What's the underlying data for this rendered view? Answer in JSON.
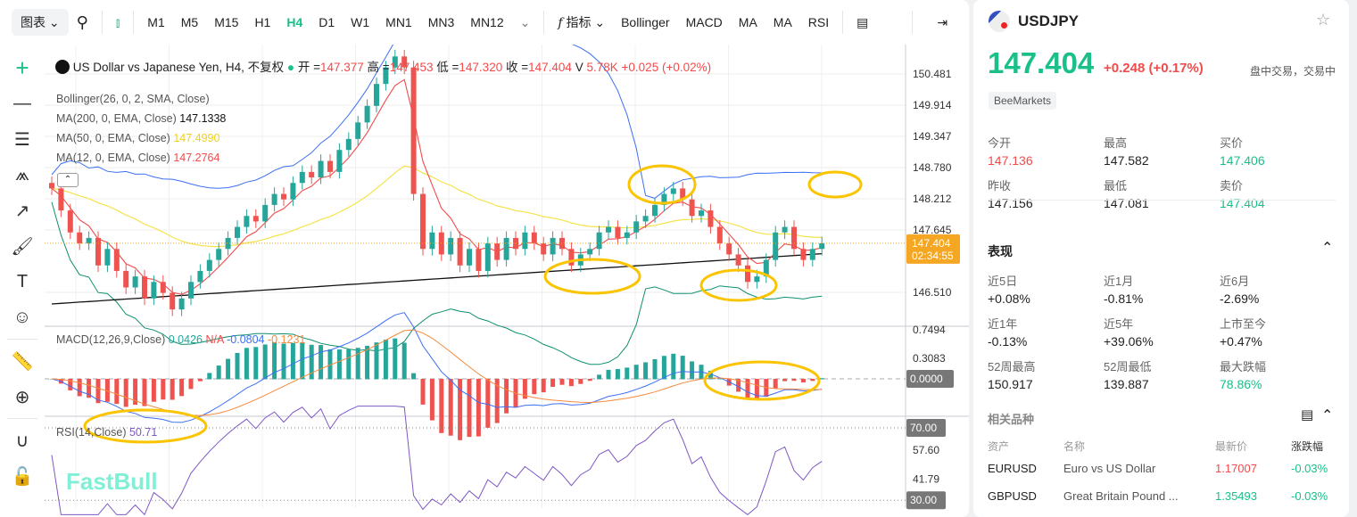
{
  "toolbar": {
    "chart_menu": "图表",
    "timeframes": [
      "M1",
      "M5",
      "M15",
      "H1",
      "H4",
      "D1",
      "W1",
      "MN1",
      "MN3",
      "MN12"
    ],
    "active_timeframe": "H4",
    "indicators_label": "指标",
    "indicator_shortcuts": [
      "Bollinger",
      "MACD",
      "MA",
      "MA",
      "RSI"
    ]
  },
  "legend": {
    "title": "US Dollar vs Japanese Yen, H4, 不复权",
    "open_label": "开 =",
    "open": "147.377",
    "high_label": "高 =",
    "high": "147.453",
    "low_label": "低 =",
    "low": "147.320",
    "close_label": "收 =",
    "close": "147.404",
    "vol_label": "V",
    "vol": "5.78K",
    "change": "+0.025 (+0.02%)",
    "bollinger": "Bollinger(26, 0, 2, SMA, Close)",
    "ma200": "MA(200, 0, EMA, Close)",
    "ma200_val": "147.1338",
    "ma50": "MA(50, 0, EMA, Close)",
    "ma50_val": "147.4990",
    "ma12": "MA(12, 0, EMA, Close)",
    "ma12_val": "147.2764",
    "macd": "MACD(12,26,9,Close)",
    "macd_hist": "0.0426",
    "macd_na": "N/A",
    "macd_line": "-0.0804",
    "macd_signal": "-0.1231",
    "rsi": "RSI(14,Close)",
    "rsi_val": "50.71"
  },
  "axis": {
    "price_ticks": [
      "150.481",
      "149.914",
      "149.347",
      "148.780",
      "148.212",
      "147.645",
      "146.510"
    ],
    "price_tag": "147.404",
    "countdown": "02:34:55",
    "macd_ticks": [
      "0.7494",
      "0.3083"
    ],
    "macd_zero": "0.0000",
    "rsi_ticks": [
      "57.60",
      "41.79"
    ],
    "rsi_70": "70.00",
    "rsi_30": "30.00"
  },
  "watermark": "FastBull",
  "colors": {
    "up": "#26a69a",
    "down": "#ef5350",
    "accent": "#19c08a",
    "bb": "#3d6ff5",
    "ma12": "#f24b4b",
    "ma50": "#f5e34b",
    "ma200": "#111111",
    "annot": "#fbc400"
  },
  "chart_data": {
    "type": "candlestick",
    "closes": [
      148.4,
      148.0,
      147.6,
      147.4,
      147.5,
      147.0,
      147.3,
      146.9,
      146.6,
      146.8,
      146.4,
      146.7,
      146.5,
      146.2,
      146.4,
      146.7,
      146.9,
      147.1,
      147.3,
      147.5,
      147.7,
      147.9,
      147.8,
      148.1,
      148.3,
      148.2,
      148.5,
      148.7,
      148.6,
      148.9,
      148.7,
      149.1,
      149.3,
      149.6,
      149.9,
      150.3,
      150.6,
      150.8,
      150.6,
      148.3,
      147.3,
      147.6,
      147.2,
      147.5,
      147.0,
      147.3,
      146.9,
      147.4,
      147.1,
      147.5,
      147.3,
      147.6,
      147.4,
      147.2,
      147.5,
      147.3,
      147.0,
      147.2,
      147.3,
      147.6,
      147.7,
      147.5,
      147.6,
      147.8,
      147.9,
      148.1,
      148.3,
      148.4,
      148.2,
      147.9,
      148.0,
      147.7,
      147.4,
      147.2,
      147.0,
      146.7,
      146.8,
      147.1,
      147.6,
      147.7,
      147.3,
      147.1,
      147.3,
      147.404
    ]
  },
  "quote": {
    "symbol": "USDJPY",
    "price": "147.404",
    "change": "+0.248",
    "change_pct": "(+0.17%)",
    "status": "盘中交易，交易中",
    "broker": "BeeMarkets",
    "stats": [
      {
        "label": "今开",
        "value": "147.136",
        "c": "red"
      },
      {
        "label": "最高",
        "value": "147.582",
        "c": ""
      },
      {
        "label": "买价",
        "value": "147.406",
        "c": "green"
      },
      {
        "label": "昨收",
        "value": "147.156",
        "c": ""
      },
      {
        "label": "最低",
        "value": "147.081",
        "c": ""
      },
      {
        "label": "卖价",
        "value": "147.404",
        "c": "green"
      }
    ]
  },
  "performance": {
    "title": "表现",
    "items": [
      {
        "label": "近5日",
        "value": "+0.08%",
        "c": ""
      },
      {
        "label": "近1月",
        "value": "-0.81%",
        "c": ""
      },
      {
        "label": "近6月",
        "value": "-2.69%",
        "c": ""
      },
      {
        "label": "近1年",
        "value": "-0.13%",
        "c": ""
      },
      {
        "label": "近5年",
        "value": "+39.06%",
        "c": ""
      },
      {
        "label": "上市至今",
        "value": "+0.47%",
        "c": ""
      },
      {
        "label": "52周最高",
        "value": "150.917",
        "c": ""
      },
      {
        "label": "52周最低",
        "value": "139.887",
        "c": ""
      },
      {
        "label": "最大跌幅",
        "value": "78.86%",
        "c": "green"
      }
    ]
  },
  "related": {
    "title": "相关品种",
    "headers": [
      "资产",
      "名称",
      "最新价",
      "涨跌幅"
    ],
    "rows": [
      {
        "asset": "EURUSD",
        "name": "Euro vs US Dollar",
        "price": "1.17007",
        "pc": "red",
        "chg": "-0.03%"
      },
      {
        "asset": "GBPUSD",
        "name": "Great Britain Pound ...",
        "price": "1.35493",
        "pc": "green",
        "chg": "-0.03%"
      }
    ]
  }
}
